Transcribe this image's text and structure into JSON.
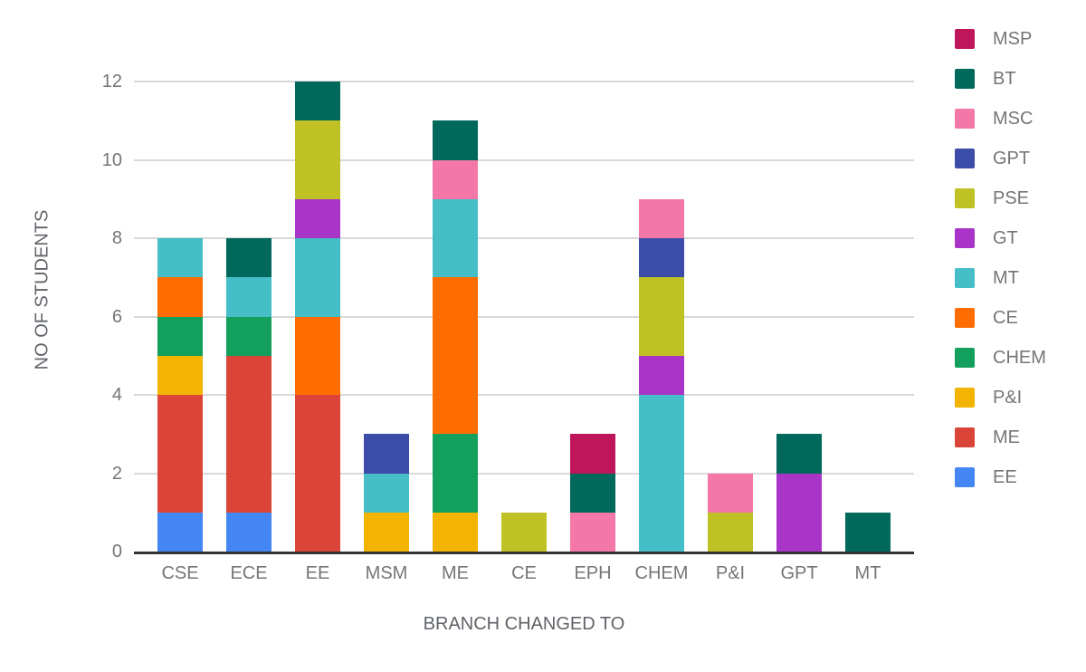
{
  "chart_data": {
    "type": "bar",
    "stacked": true,
    "title": "",
    "xlabel": "BRANCH CHANGED TO",
    "ylabel": "NO OF STUDENTS",
    "categories": [
      "CSE",
      "ECE",
      "EE",
      "MSM",
      "ME",
      "CE",
      "EPH",
      "CHEM",
      "P&I",
      "GPT",
      "MT"
    ],
    "category_totals": [
      8,
      8,
      12,
      3,
      11,
      1,
      3,
      9,
      2,
      3,
      1
    ],
    "ylim": [
      0,
      12
    ],
    "yticks": [
      0,
      2,
      4,
      6,
      8,
      10,
      12
    ],
    "grid": true,
    "legend_position": "right",
    "legend_order": [
      "MSP",
      "BT",
      "MSC",
      "GPT",
      "PSE",
      "GT",
      "MT",
      "CE",
      "CHEM",
      "P&I",
      "ME",
      "EE"
    ],
    "stack_order_note": "series listed bottom-to-top of each stacked bar",
    "series": [
      {
        "name": "EE",
        "color": "#4486f4",
        "values": [
          1,
          1,
          0,
          0,
          0,
          0,
          0,
          0,
          0,
          0,
          0
        ]
      },
      {
        "name": "ME",
        "color": "#db4539",
        "values": [
          3,
          4,
          4,
          0,
          0,
          0,
          0,
          0,
          0,
          0,
          0
        ]
      },
      {
        "name": "P&I",
        "color": "#f2b400",
        "values": [
          1,
          0,
          0,
          1,
          1,
          0,
          0,
          0,
          0,
          0,
          0
        ]
      },
      {
        "name": "CHEM",
        "color": "#12a05c",
        "values": [
          1,
          1,
          0,
          0,
          2,
          0,
          0,
          0,
          0,
          0,
          0
        ]
      },
      {
        "name": "CE",
        "color": "#ff6d00",
        "values": [
          1,
          0,
          2,
          0,
          4,
          0,
          0,
          0,
          0,
          0,
          0
        ]
      },
      {
        "name": "MT",
        "color": "#45bec7",
        "values": [
          1,
          1,
          2,
          1,
          2,
          0,
          0,
          4,
          0,
          0,
          0
        ]
      },
      {
        "name": "GT",
        "color": "#a935c8",
        "values": [
          0,
          0,
          1,
          0,
          0,
          0,
          0,
          1,
          0,
          2,
          0
        ]
      },
      {
        "name": "PSE",
        "color": "#c0c124",
        "values": [
          0,
          0,
          2,
          0,
          0,
          1,
          0,
          2,
          1,
          0,
          0
        ]
      },
      {
        "name": "GPT",
        "color": "#3b4da9",
        "values": [
          0,
          0,
          0,
          1,
          0,
          0,
          0,
          1,
          0,
          0,
          0
        ]
      },
      {
        "name": "MSC",
        "color": "#f478a7",
        "values": [
          0,
          0,
          0,
          0,
          1,
          0,
          1,
          1,
          1,
          0,
          0
        ]
      },
      {
        "name": "BT",
        "color": "#00695c",
        "values": [
          0,
          1,
          1,
          0,
          1,
          0,
          1,
          0,
          0,
          1,
          1
        ]
      },
      {
        "name": "MSP",
        "color": "#bf155b",
        "values": [
          0,
          0,
          0,
          0,
          0,
          0,
          1,
          0,
          0,
          0,
          0
        ]
      }
    ],
    "colors": {
      "gridline": "#d9d9d9",
      "baseline": "#333333",
      "tick_label": "#757575",
      "axis_title": "#5f6368",
      "legend_label": "#757575",
      "background": "#ffffff"
    }
  }
}
